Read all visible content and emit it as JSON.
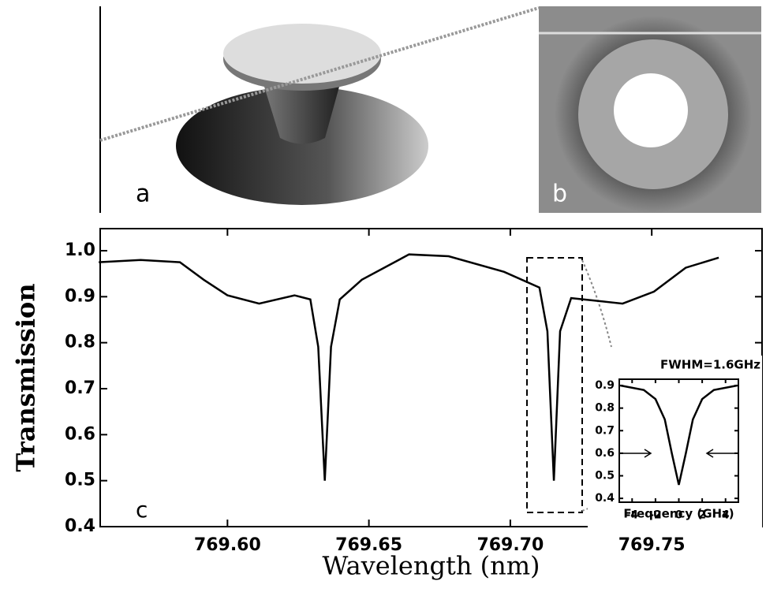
{
  "panel_labels": [
    "a",
    "b"
  ],
  "chart_data": [
    {
      "type": "line",
      "panel_label": "c",
      "x_label": "Wavelength (nm)",
      "y_label": "Transmission",
      "x": [
        769.5545,
        769.5693,
        769.5832,
        769.5916,
        769.6,
        769.6112,
        769.6237,
        769.6293,
        769.6321,
        769.6344,
        769.6366,
        769.6397,
        769.6475,
        769.6642,
        769.6782,
        769.6978,
        769.7103,
        769.7131,
        769.7154,
        769.7176,
        769.7215,
        769.7397,
        769.7508,
        769.762,
        769.7737
      ],
      "values": [
        0.975,
        0.98,
        0.975,
        0.937,
        0.903,
        0.885,
        0.903,
        0.894,
        0.791,
        0.5,
        0.791,
        0.894,
        0.937,
        0.992,
        0.988,
        0.954,
        0.92,
        0.825,
        0.5,
        0.825,
        0.897,
        0.885,
        0.911,
        0.963,
        0.985
      ],
      "color": "#000000",
      "xlim": [
        769.555,
        769.789
      ],
      "xticks": [
        {
          "value": 769.6,
          "label": "769.60"
        },
        {
          "value": 769.65,
          "label": "769.65"
        },
        {
          "value": 769.7,
          "label": "769.70"
        },
        {
          "value": 769.75,
          "label": "769.75"
        }
      ],
      "ylim": [
        0.4,
        1.048
      ],
      "yticks": [
        {
          "value": 0.4,
          "label": "0.4"
        },
        0.5,
        0.6,
        0.7,
        0.8,
        0.9,
        {
          "value": 1,
          "label": "1.0"
        }
      ]
    },
    {
      "type": "line",
      "title": "FWHM=1.6GHz",
      "x_label": "Frequency (GHz)",
      "x": [
        -5,
        -3,
        -2,
        -1.2,
        -0.6,
        0,
        0.6,
        1.2,
        2,
        3,
        5
      ],
      "values": [
        0.9,
        0.88,
        0.84,
        0.75,
        0.6,
        0.46,
        0.6,
        0.75,
        0.84,
        0.88,
        0.9
      ],
      "color": "#000000",
      "xlim": [
        -5.1,
        5.1
      ],
      "xticks": [
        -4,
        -2,
        0,
        2,
        4
      ],
      "ylim": [
        0.383,
        0.928
      ],
      "yticks": [
        0.4,
        0.5,
        0.6,
        0.7,
        0.8,
        0.9
      ]
    }
  ]
}
